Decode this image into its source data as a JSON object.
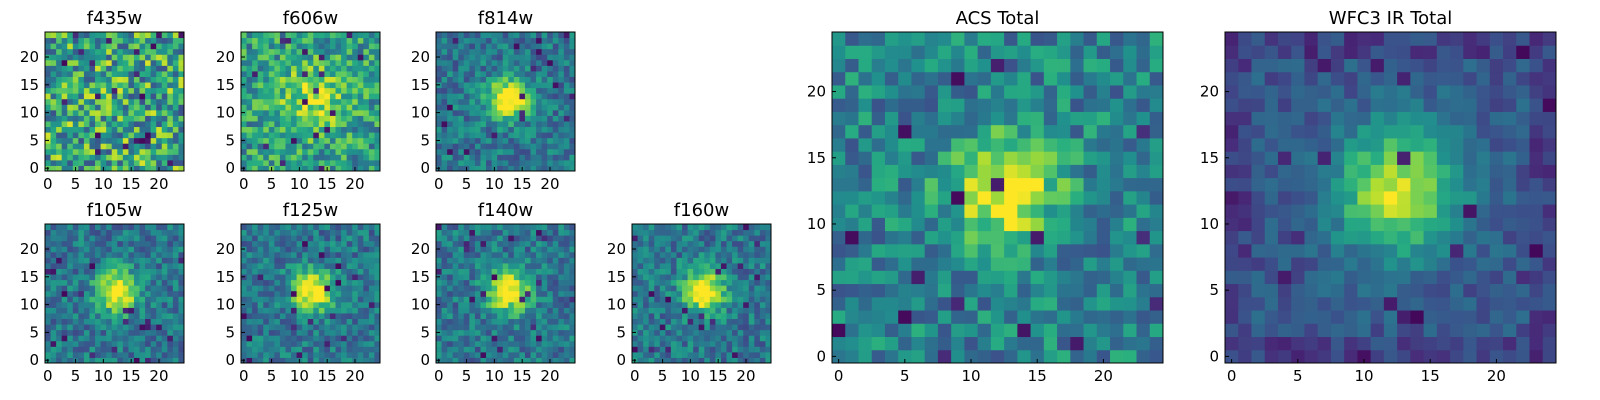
{
  "chart_data": {
    "type": "heatmap",
    "colormap": "viridis",
    "grid_size": 25,
    "panels": [
      {
        "title": "f435w",
        "pattern": "noisy",
        "xticks": [
          0,
          5,
          10,
          15,
          20
        ],
        "yticks": [
          0,
          5,
          10,
          15,
          20
        ]
      },
      {
        "title": "f606w",
        "pattern": "noisy-center",
        "xticks": [
          0,
          5,
          10,
          15,
          20
        ],
        "yticks": [
          0,
          5,
          10,
          15,
          20
        ]
      },
      {
        "title": "f814w",
        "pattern": "center-bright",
        "xticks": [
          0,
          5,
          10,
          15,
          20
        ],
        "yticks": [
          0,
          5,
          10,
          15,
          20
        ]
      },
      {
        "title": "f105w",
        "pattern": "center-bright",
        "xticks": [
          0,
          5,
          10,
          15,
          20
        ],
        "yticks": [
          0,
          5,
          10,
          15,
          20
        ]
      },
      {
        "title": "f125w",
        "pattern": "center-bright",
        "xticks": [
          0,
          5,
          10,
          15,
          20
        ],
        "yticks": [
          0,
          5,
          10,
          15,
          20
        ]
      },
      {
        "title": "f140w",
        "pattern": "center-bright",
        "xticks": [
          0,
          5,
          10,
          15,
          20
        ],
        "yticks": [
          0,
          5,
          10,
          15,
          20
        ]
      },
      {
        "title": "f160w",
        "pattern": "center-bright",
        "xticks": [
          0,
          5,
          10,
          15,
          20
        ],
        "yticks": [
          0,
          5,
          10,
          15,
          20
        ]
      },
      {
        "title": "ACS Total",
        "pattern": "acs-total",
        "xticks": [
          0,
          5,
          10,
          15,
          20
        ],
        "yticks": [
          0,
          5,
          10,
          15,
          20
        ]
      },
      {
        "title": "WFC3 IR Total",
        "pattern": "ir-total",
        "xticks": [
          0,
          5,
          10,
          15,
          20
        ],
        "yticks": [
          0,
          5,
          10,
          15,
          20
        ]
      }
    ]
  }
}
